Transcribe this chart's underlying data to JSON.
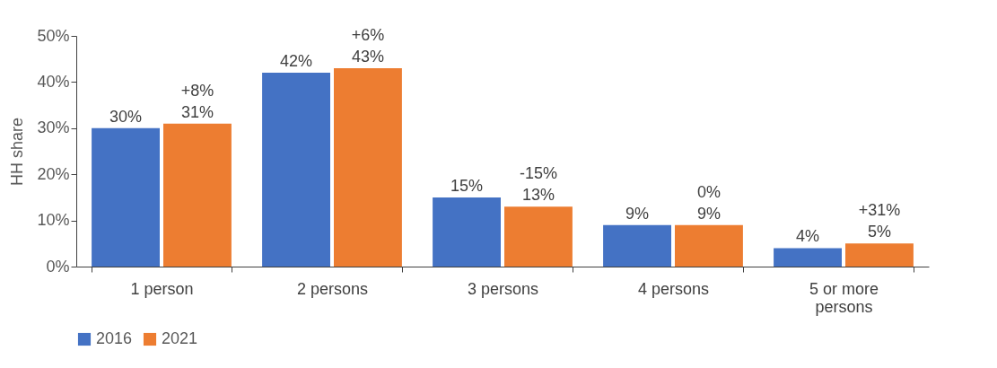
{
  "chart_data": {
    "type": "bar",
    "ylabel": "HH share",
    "categories": [
      "1 person",
      "2 persons",
      "3 persons",
      "4 persons",
      "5 or more persons"
    ],
    "series": [
      {
        "name": "2016",
        "color": "#4472c4",
        "values": [
          30,
          42,
          15,
          9,
          4
        ],
        "value_labels": [
          "30%",
          "42%",
          "15%",
          "9%",
          "4%"
        ]
      },
      {
        "name": "2021",
        "color": "#ed7d31",
        "values": [
          31,
          43,
          13,
          9,
          5
        ],
        "value_labels": [
          "31%",
          "43%",
          "13%",
          "9%",
          "5%"
        ]
      }
    ],
    "annotations": [
      {
        "text": "+8%",
        "x": "1 person",
        "y": 31
      },
      {
        "text": "+6%",
        "x": "2 persons",
        "y": 43
      },
      {
        "text": "-15%",
        "x": "3 persons",
        "y": 13
      },
      {
        "text": "0%",
        "x": "4 persons",
        "y": 9
      },
      {
        "text": "+31%",
        "x": "5 or more persons",
        "y": 5
      }
    ],
    "ylim": [
      0,
      50
    ],
    "yticks": [
      {
        "value": 0,
        "label": "0%"
      },
      {
        "value": 10,
        "label": "10%"
      },
      {
        "value": 20,
        "label": "20%"
      },
      {
        "value": 30,
        "label": "30%"
      },
      {
        "value": 40,
        "label": "40%"
      },
      {
        "value": 50,
        "label": "50%"
      }
    ],
    "grid": false,
    "legend": "bottom"
  }
}
